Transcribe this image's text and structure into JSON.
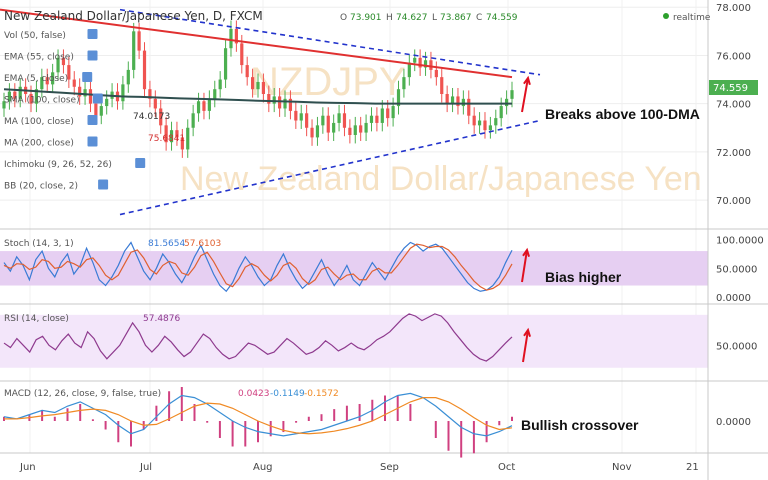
{
  "chart_data": {
    "type": "candlestick",
    "title": "New Zealand Dollar/Japanese Yen, D, FXCM",
    "ohlc": {
      "open": "73.901",
      "high": "74.627",
      "low": "73.867",
      "close": "74.559"
    },
    "realtime_label": "realtime",
    "watermark": "NZDJPY",
    "watermark_sub": "New Zealand Dollar/Japanese Yen",
    "price_axis": {
      "ticks": [
        "78.000",
        "76.000",
        "74.000",
        "72.000",
        "70.000"
      ],
      "ylim": [
        68.8,
        78.3
      ]
    },
    "last_price_label": "74.559",
    "x_labels": [
      "Jun",
      "Jul",
      "Aug",
      "Sep",
      "Oct",
      "Nov",
      "21"
    ],
    "indicator_legend": [
      "Vol (50, false)",
      "EMA (55, close)",
      "EMA (5, close)",
      "SMA (100, close)",
      "MA (100, close)",
      "MA (200, close)",
      "Ichimoku (9, 26, 52, 26)",
      "BB (20, close, 2)"
    ],
    "indicator_values": {
      "ma100": "74.0173",
      "ma200": "75.6841"
    },
    "candles_close": [
      74.1,
      74.5,
      74.2,
      74.7,
      74.4,
      74.0,
      74.6,
      75.1,
      74.8,
      75.3,
      75.9,
      75.6,
      75.0,
      74.7,
      74.3,
      74.6,
      74.0,
      73.5,
      73.9,
      74.2,
      74.5,
      74.1,
      74.8,
      75.4,
      77.0,
      76.2,
      74.6,
      74.2,
      73.8,
      73.1,
      72.4,
      72.9,
      72.6,
      72.1,
      73.0,
      73.6,
      74.1,
      73.7,
      74.2,
      74.6,
      75.0,
      76.3,
      77.1,
      76.5,
      75.6,
      75.1,
      74.6,
      74.9,
      74.4,
      74.0,
      74.3,
      73.8,
      74.2,
      73.7,
      73.3,
      73.6,
      73.0,
      72.6,
      73.1,
      73.5,
      72.8,
      73.2,
      73.6,
      73.0,
      72.7,
      73.1,
      72.8,
      73.2,
      73.5,
      73.2,
      73.8,
      73.4,
      73.9,
      74.6,
      75.1,
      75.7,
      75.9,
      75.5,
      75.8,
      75.4,
      75.1,
      74.4,
      74.0,
      74.3,
      73.9,
      74.2,
      73.5,
      73.1,
      73.3,
      72.9,
      73.1,
      73.4,
      73.9,
      74.2,
      74.559
    ],
    "ma100": [
      74.6,
      74.55,
      74.5,
      74.45,
      74.4,
      74.35,
      74.3,
      74.28,
      74.25,
      74.22,
      74.2,
      74.18,
      74.15,
      74.12,
      74.1,
      74.08,
      74.05,
      74.03,
      74.02,
      74.0,
      74.0,
      74.0,
      74.0,
      74.0,
      74.0,
      74.0,
      74.0
    ],
    "trendline_upper": {
      "from": [
        "May 30",
        77.9
      ],
      "to": [
        "Oct 3",
        75.1
      ]
    },
    "triangle_upper": {
      "from": [
        "Jun 25",
        77.9
      ],
      "to": [
        "Oct 8",
        75.2
      ]
    },
    "triangle_lower": {
      "from": [
        "Jun 25",
        69.4
      ],
      "to": [
        "Oct 8",
        73.3
      ]
    },
    "stoch": {
      "label": "Stoch (14, 3, 1)",
      "k": "81.5654",
      "d": "57.6103",
      "ticks": [
        "100.0000",
        "50.0000",
        "0.0000"
      ],
      "band": [
        20,
        80
      ],
      "k_values": [
        60,
        45,
        70,
        55,
        30,
        65,
        80,
        50,
        35,
        60,
        75,
        40,
        55,
        85,
        60,
        30,
        20,
        35,
        55,
        80,
        95,
        70,
        45,
        30,
        50,
        75,
        60,
        40,
        25,
        45,
        70,
        90,
        65,
        40,
        20,
        10,
        25,
        50,
        70,
        55,
        35,
        20,
        30,
        55,
        75,
        50,
        30,
        15,
        25,
        45,
        65,
        40,
        20,
        35,
        55,
        30,
        20,
        40,
        60,
        45,
        30,
        50,
        70,
        85,
        95,
        90,
        80,
        88,
        92,
        85,
        70,
        55,
        40,
        25,
        15,
        10,
        12,
        20,
        35,
        60,
        81.5
      ],
      "d_values": [
        55,
        50,
        58,
        57,
        48,
        52,
        65,
        62,
        50,
        52,
        62,
        58,
        52,
        65,
        68,
        55,
        38,
        30,
        38,
        58,
        78,
        82,
        68,
        48,
        40,
        55,
        62,
        58,
        42,
        38,
        52,
        72,
        78,
        62,
        42,
        23,
        18,
        32,
        52,
        58,
        52,
        38,
        28,
        38,
        55,
        60,
        50,
        32,
        22,
        30,
        48,
        52,
        40,
        30,
        38,
        40,
        30,
        30,
        45,
        50,
        42,
        42,
        55,
        70,
        85,
        92,
        90,
        86,
        88,
        88,
        82,
        70,
        55,
        42,
        28,
        18,
        12,
        15,
        22,
        38,
        57.6
      ]
    },
    "rsi": {
      "label": "RSI (14, close)",
      "value": "57.4876",
      "ticks": [
        "50.0000"
      ],
      "band": [
        30,
        70
      ],
      "values": [
        52,
        48,
        56,
        50,
        44,
        55,
        58,
        50,
        46,
        54,
        60,
        52,
        48,
        62,
        56,
        45,
        38,
        44,
        50,
        60,
        70,
        62,
        50,
        44,
        50,
        58,
        53,
        46,
        40,
        44,
        52,
        60,
        56,
        48,
        42,
        38,
        40,
        46,
        52,
        50,
        46,
        42,
        44,
        50,
        56,
        52,
        47,
        42,
        44,
        48,
        54,
        50,
        45,
        48,
        52,
        48,
        46,
        50,
        55,
        58,
        62,
        68,
        74,
        78,
        76,
        72,
        75,
        78,
        76,
        70,
        62,
        55,
        48,
        42,
        38,
        36,
        40,
        46,
        52,
        57.5
      ]
    },
    "macd": {
      "label": "MACD (12, 26, close, 9, false, true)",
      "hist": "0.0423",
      "macd": "-0.1149",
      "signal": "-0.1572",
      "ticks": [
        "0.0000"
      ],
      "macd_values": [
        0.1,
        0.05,
        0.15,
        0.25,
        0.2,
        0.35,
        0.45,
        0.3,
        0.15,
        -0.1,
        -0.3,
        -0.2,
        0.1,
        0.4,
        0.6,
        0.55,
        0.4,
        0.2,
        0.0,
        -0.15,
        -0.25,
        -0.3,
        -0.35,
        -0.3,
        -0.25,
        -0.2,
        -0.1,
        0.0,
        0.1,
        0.25,
        0.45,
        0.6,
        0.65,
        0.55,
        0.35,
        0.1,
        -0.15,
        -0.3,
        -0.35,
        -0.25,
        -0.11
      ],
      "signal_values": [
        0.05,
        0.05,
        0.08,
        0.12,
        0.15,
        0.2,
        0.25,
        0.28,
        0.25,
        0.15,
        0.0,
        -0.1,
        -0.08,
        0.05,
        0.2,
        0.35,
        0.42,
        0.4,
        0.3,
        0.15,
        0.0,
        -0.12,
        -0.22,
        -0.28,
        -0.3,
        -0.28,
        -0.24,
        -0.18,
        -0.1,
        0.0,
        0.15,
        0.3,
        0.45,
        0.55,
        0.55,
        0.45,
        0.28,
        0.08,
        -0.1,
        -0.2,
        -0.16
      ]
    },
    "annotations": [
      "Breaks above 100-DMA",
      "Bias higher",
      "Bullish crossover"
    ]
  },
  "colors": {
    "bull": "#4caf50",
    "bear": "#ef5350",
    "ma100": "#2f4f4f",
    "trend": "#e03030",
    "triangle": "#2233cc",
    "stoch_k": "#3a7bd5",
    "stoch_d": "#e06030",
    "rsi": "#8e3a8e",
    "band": "#e6cff2",
    "macd": "#3a8fd5",
    "signal": "#f08a24",
    "hist": "#d04080",
    "arrow": "#e01020"
  }
}
